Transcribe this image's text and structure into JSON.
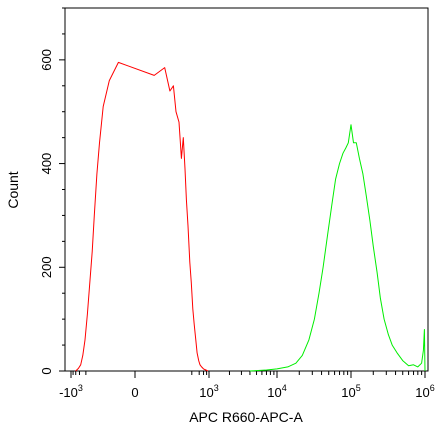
{
  "chart_data": {
    "type": "line",
    "title": "",
    "xlabel": "APC R660-APC-A",
    "ylabel": "Count",
    "x_scale": "logicle",
    "x_ticks": [
      {
        "value": -1000,
        "base": "-10",
        "exp": "3"
      },
      {
        "value": 0,
        "base": "0",
        "exp": ""
      },
      {
        "value": 1000,
        "base": "10",
        "exp": "3"
      },
      {
        "value": 10000,
        "base": "10",
        "exp": "4"
      },
      {
        "value": 100000,
        "base": "10",
        "exp": "5"
      },
      {
        "value": 1000000,
        "base": "10",
        "exp": "6"
      }
    ],
    "ylim": [
      0,
      700
    ],
    "y_ticks": [
      {
        "value": 0,
        "label": "0"
      },
      {
        "value": 200,
        "label": "200"
      },
      {
        "value": 400,
        "label": "400"
      },
      {
        "value": 600,
        "label": "600"
      }
    ],
    "grid": false,
    "legend": "none",
    "series": [
      {
        "color": "#ff0000",
        "points": [
          [
            -600,
            0
          ],
          [
            -450,
            5
          ],
          [
            -350,
            12
          ],
          [
            -280,
            30
          ],
          [
            -220,
            60
          ],
          [
            -170,
            110
          ],
          [
            -130,
            170
          ],
          [
            -100,
            230
          ],
          [
            -80,
            300
          ],
          [
            -60,
            380
          ],
          [
            -45,
            440
          ],
          [
            -30,
            510
          ],
          [
            -15,
            560
          ],
          [
            -5,
            595
          ],
          [
            5,
            570
          ],
          [
            15,
            585
          ],
          [
            25,
            540
          ],
          [
            35,
            550
          ],
          [
            45,
            500
          ],
          [
            60,
            480
          ],
          [
            75,
            410
          ],
          [
            90,
            450
          ],
          [
            105,
            390
          ],
          [
            120,
            330
          ],
          [
            140,
            280
          ],
          [
            165,
            210
          ],
          [
            190,
            170
          ],
          [
            220,
            120
          ],
          [
            250,
            90
          ],
          [
            290,
            60
          ],
          [
            330,
            35
          ],
          [
            380,
            20
          ],
          [
            430,
            12
          ],
          [
            500,
            8
          ],
          [
            600,
            4
          ],
          [
            750,
            2
          ],
          [
            900,
            0
          ]
        ]
      },
      {
        "color": "#00ee00",
        "points": [
          [
            4000,
            0
          ],
          [
            7000,
            2
          ],
          [
            10000,
            4
          ],
          [
            14000,
            8
          ],
          [
            18000,
            15
          ],
          [
            22000,
            30
          ],
          [
            27000,
            60
          ],
          [
            32000,
            100
          ],
          [
            37000,
            150
          ],
          [
            42000,
            200
          ],
          [
            48000,
            260
          ],
          [
            55000,
            320
          ],
          [
            62000,
            370
          ],
          [
            70000,
            400
          ],
          [
            78000,
            420
          ],
          [
            85000,
            430
          ],
          [
            92000,
            440
          ],
          [
            100000,
            475
          ],
          [
            108000,
            440
          ],
          [
            118000,
            440
          ],
          [
            130000,
            410
          ],
          [
            145000,
            380
          ],
          [
            160000,
            340
          ],
          [
            180000,
            290
          ],
          [
            200000,
            240
          ],
          [
            225000,
            190
          ],
          [
            250000,
            140
          ],
          [
            280000,
            100
          ],
          [
            320000,
            70
          ],
          [
            360000,
            50
          ],
          [
            420000,
            35
          ],
          [
            500000,
            20
          ],
          [
            600000,
            10
          ],
          [
            700000,
            12
          ],
          [
            800000,
            8
          ],
          [
            900000,
            15
          ],
          [
            950000,
            40
          ],
          [
            980000,
            80
          ],
          [
            1000000,
            0
          ]
        ]
      }
    ]
  }
}
